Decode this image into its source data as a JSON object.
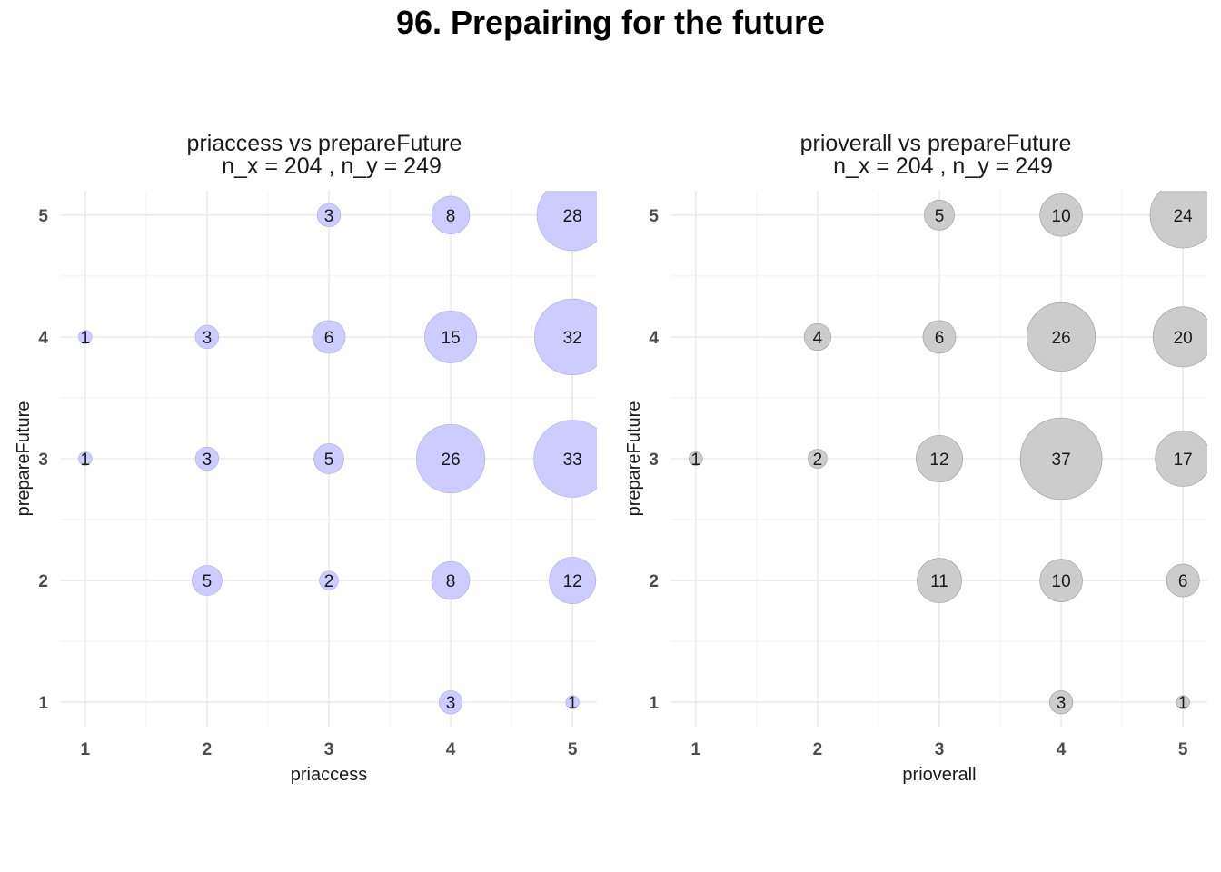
{
  "title": "96. Prepairing for the future",
  "chart_data": [
    {
      "type": "scatter",
      "title": "priaccess vs prepareFuture",
      "subtitle": "n_x = 204 , n_y = 249",
      "xlabel": "priaccess",
      "ylabel": "prepareFuture",
      "xticks": [
        "1",
        "2",
        "3",
        "4",
        "5"
      ],
      "yticks": [
        "1",
        "2",
        "3",
        "4",
        "5"
      ],
      "xlim": [
        0.8,
        5.2
      ],
      "ylim": [
        0.8,
        5.2
      ],
      "bubble_color": "#ccccff",
      "bubble_stroke": "#aaaaee",
      "points": [
        {
          "x": 3,
          "y": 5,
          "n": 3
        },
        {
          "x": 4,
          "y": 5,
          "n": 8
        },
        {
          "x": 5,
          "y": 5,
          "n": 28
        },
        {
          "x": 1,
          "y": 4,
          "n": 1
        },
        {
          "x": 2,
          "y": 4,
          "n": 3
        },
        {
          "x": 3,
          "y": 4,
          "n": 6
        },
        {
          "x": 4,
          "y": 4,
          "n": 15
        },
        {
          "x": 5,
          "y": 4,
          "n": 32
        },
        {
          "x": 1,
          "y": 3,
          "n": 1
        },
        {
          "x": 2,
          "y": 3,
          "n": 3
        },
        {
          "x": 3,
          "y": 3,
          "n": 5
        },
        {
          "x": 4,
          "y": 3,
          "n": 26
        },
        {
          "x": 5,
          "y": 3,
          "n": 33
        },
        {
          "x": 2,
          "y": 2,
          "n": 5
        },
        {
          "x": 3,
          "y": 2,
          "n": 2
        },
        {
          "x": 4,
          "y": 2,
          "n": 8
        },
        {
          "x": 5,
          "y": 2,
          "n": 12
        },
        {
          "x": 4,
          "y": 1,
          "n": 3
        },
        {
          "x": 5,
          "y": 1,
          "n": 1
        }
      ]
    },
    {
      "type": "scatter",
      "title": "prioverall vs prepareFuture",
      "subtitle": "n_x = 204 , n_y = 249",
      "xlabel": "prioverall",
      "ylabel": "prepareFuture",
      "xticks": [
        "1",
        "2",
        "3",
        "4",
        "5"
      ],
      "yticks": [
        "1",
        "2",
        "3",
        "4",
        "5"
      ],
      "xlim": [
        0.8,
        5.2
      ],
      "ylim": [
        0.8,
        5.2
      ],
      "bubble_color": "#cccccc",
      "bubble_stroke": "#999999",
      "points": [
        {
          "x": 3,
          "y": 5,
          "n": 5
        },
        {
          "x": 4,
          "y": 5,
          "n": 10
        },
        {
          "x": 5,
          "y": 5,
          "n": 24
        },
        {
          "x": 2,
          "y": 4,
          "n": 4
        },
        {
          "x": 3,
          "y": 4,
          "n": 6
        },
        {
          "x": 4,
          "y": 4,
          "n": 26
        },
        {
          "x": 5,
          "y": 4,
          "n": 20
        },
        {
          "x": 1,
          "y": 3,
          "n": 1
        },
        {
          "x": 2,
          "y": 3,
          "n": 2
        },
        {
          "x": 3,
          "y": 3,
          "n": 12
        },
        {
          "x": 4,
          "y": 3,
          "n": 37
        },
        {
          "x": 5,
          "y": 3,
          "n": 17
        },
        {
          "x": 3,
          "y": 2,
          "n": 11
        },
        {
          "x": 4,
          "y": 2,
          "n": 10
        },
        {
          "x": 5,
          "y": 2,
          "n": 6
        },
        {
          "x": 4,
          "y": 1,
          "n": 3
        },
        {
          "x": 5,
          "y": 1,
          "n": 1
        }
      ]
    }
  ]
}
